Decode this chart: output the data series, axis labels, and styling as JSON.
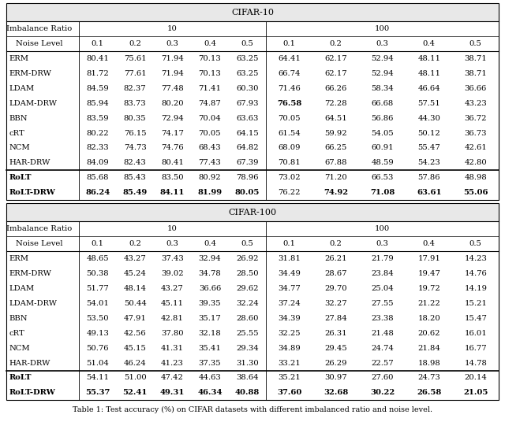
{
  "cifar10_title": "CIFAR-10",
  "cifar100_title": "CIFAR-100",
  "caption": "Table 1: Test accuracy (%) on CIFAR datasets with different imbalanced ratio and noise level.",
  "noise_levels": [
    "0.1",
    "0.2",
    "0.3",
    "0.4",
    "0.5"
  ],
  "methods": [
    "ERM",
    "ERM-DRW",
    "LDAM",
    "LDAM-DRW",
    "BBN",
    "cRT",
    "NCM",
    "HAR-DRW",
    "RoLT",
    "RoLT-DRW"
  ],
  "cifar10_ir10": [
    [
      80.41,
      75.61,
      71.94,
      70.13,
      63.25
    ],
    [
      81.72,
      77.61,
      71.94,
      70.13,
      63.25
    ],
    [
      84.59,
      82.37,
      77.48,
      71.41,
      60.3
    ],
    [
      85.94,
      83.73,
      80.2,
      74.87,
      67.93
    ],
    [
      83.59,
      80.35,
      72.94,
      70.04,
      63.63
    ],
    [
      80.22,
      76.15,
      74.17,
      70.05,
      64.15
    ],
    [
      82.33,
      74.73,
      74.76,
      68.43,
      64.82
    ],
    [
      84.09,
      82.43,
      80.41,
      77.43,
      67.39
    ],
    [
      85.68,
      85.43,
      83.5,
      80.92,
      78.96
    ],
    [
      86.24,
      85.49,
      84.11,
      81.99,
      80.05
    ]
  ],
  "cifar10_ir100": [
    [
      64.41,
      62.17,
      52.94,
      48.11,
      38.71
    ],
    [
      66.74,
      62.17,
      52.94,
      48.11,
      38.71
    ],
    [
      71.46,
      66.26,
      58.34,
      46.64,
      36.66
    ],
    [
      76.58,
      72.28,
      66.68,
      57.51,
      43.23
    ],
    [
      70.05,
      64.51,
      56.86,
      44.3,
      36.72
    ],
    [
      61.54,
      59.92,
      54.05,
      50.12,
      36.73
    ],
    [
      68.09,
      66.25,
      60.91,
      55.47,
      42.61
    ],
    [
      70.81,
      67.88,
      48.59,
      54.23,
      42.8
    ],
    [
      73.02,
      71.2,
      66.53,
      57.86,
      48.98
    ],
    [
      76.22,
      74.92,
      71.08,
      63.61,
      55.06
    ]
  ],
  "cifar100_ir10": [
    [
      48.65,
      43.27,
      37.43,
      32.94,
      26.92
    ],
    [
      50.38,
      45.24,
      39.02,
      34.78,
      28.5
    ],
    [
      51.77,
      48.14,
      43.27,
      36.66,
      29.62
    ],
    [
      54.01,
      50.44,
      45.11,
      39.35,
      32.24
    ],
    [
      53.5,
      47.91,
      42.81,
      35.17,
      28.6
    ],
    [
      49.13,
      42.56,
      37.8,
      32.18,
      25.55
    ],
    [
      50.76,
      45.15,
      41.31,
      35.41,
      29.34
    ],
    [
      51.04,
      46.24,
      41.23,
      37.35,
      31.3
    ],
    [
      54.11,
      51.0,
      47.42,
      44.63,
      38.64
    ],
    [
      55.37,
      52.41,
      49.31,
      46.34,
      40.88
    ]
  ],
  "cifar100_ir100": [
    [
      31.81,
      26.21,
      21.79,
      17.91,
      14.23
    ],
    [
      34.49,
      28.67,
      23.84,
      19.47,
      14.76
    ],
    [
      34.77,
      29.7,
      25.04,
      19.72,
      14.19
    ],
    [
      37.24,
      32.27,
      27.55,
      21.22,
      15.21
    ],
    [
      34.39,
      27.84,
      23.38,
      18.2,
      15.47
    ],
    [
      32.25,
      26.31,
      21.48,
      20.62,
      16.01
    ],
    [
      34.89,
      29.45,
      24.74,
      21.84,
      16.77
    ],
    [
      33.21,
      26.29,
      22.57,
      18.98,
      14.78
    ],
    [
      35.21,
      30.97,
      27.6,
      24.73,
      20.14
    ],
    [
      37.6,
      32.68,
      30.22,
      26.58,
      21.05
    ]
  ],
  "bold_cifar10_ir10": [
    [
      0,
      0,
      0,
      0,
      0
    ],
    [
      0,
      0,
      0,
      0,
      0
    ],
    [
      0,
      0,
      0,
      0,
      0
    ],
    [
      0,
      0,
      0,
      0,
      0
    ],
    [
      0,
      0,
      0,
      0,
      0
    ],
    [
      0,
      0,
      0,
      0,
      0
    ],
    [
      0,
      0,
      0,
      0,
      0
    ],
    [
      0,
      0,
      0,
      0,
      0
    ],
    [
      0,
      0,
      0,
      0,
      0
    ],
    [
      1,
      1,
      1,
      1,
      1
    ]
  ],
  "bold_cifar10_ir100": [
    [
      0,
      0,
      0,
      0,
      0
    ],
    [
      0,
      0,
      0,
      0,
      0
    ],
    [
      0,
      0,
      0,
      0,
      0
    ],
    [
      1,
      0,
      0,
      0,
      0
    ],
    [
      0,
      0,
      0,
      0,
      0
    ],
    [
      0,
      0,
      0,
      0,
      0
    ],
    [
      0,
      0,
      0,
      0,
      0
    ],
    [
      0,
      0,
      0,
      0,
      0
    ],
    [
      0,
      0,
      0,
      0,
      0
    ],
    [
      0,
      1,
      1,
      1,
      1
    ]
  ],
  "bold_cifar100_ir10": [
    [
      0,
      0,
      0,
      0,
      0
    ],
    [
      0,
      0,
      0,
      0,
      0
    ],
    [
      0,
      0,
      0,
      0,
      0
    ],
    [
      0,
      0,
      0,
      0,
      0
    ],
    [
      0,
      0,
      0,
      0,
      0
    ],
    [
      0,
      0,
      0,
      0,
      0
    ],
    [
      0,
      0,
      0,
      0,
      0
    ],
    [
      0,
      0,
      0,
      0,
      0
    ],
    [
      0,
      0,
      0,
      0,
      0
    ],
    [
      1,
      1,
      1,
      1,
      1
    ]
  ],
  "bold_cifar100_ir100": [
    [
      0,
      0,
      0,
      0,
      0
    ],
    [
      0,
      0,
      0,
      0,
      0
    ],
    [
      0,
      0,
      0,
      0,
      0
    ],
    [
      0,
      0,
      0,
      0,
      0
    ],
    [
      0,
      0,
      0,
      0,
      0
    ],
    [
      0,
      0,
      0,
      0,
      0
    ],
    [
      0,
      0,
      0,
      0,
      0
    ],
    [
      0,
      0,
      0,
      0,
      0
    ],
    [
      0,
      0,
      0,
      0,
      0
    ],
    [
      1,
      1,
      1,
      1,
      1
    ]
  ],
  "rolt_bold_name": [
    0,
    1
  ],
  "bg_color": "#ffffff",
  "title_bg_color": "#e8e8e8",
  "font_size": 7.2,
  "title_font_size": 8.0
}
